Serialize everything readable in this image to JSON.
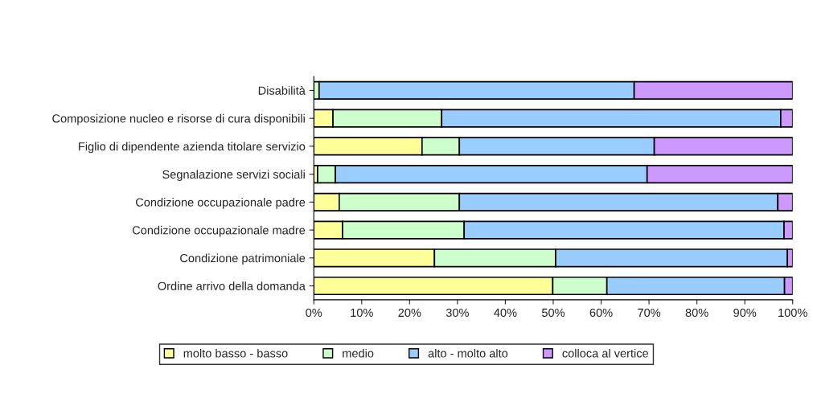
{
  "chart_data": {
    "type": "bar",
    "orientation": "horizontal",
    "stacked": true,
    "categories": [
      "Disabilità",
      "Composizione nucleo e risorse di cura disponibili",
      "Figlio di dipendente azienda titolare servizio",
      "Segnalazione servizi sociali",
      "Condizione occupazionale padre",
      "Condizione occupazionale madre",
      "Condizione patrimoniale",
      "Ordine arrivo della domanda"
    ],
    "series": [
      {
        "name": "molto basso - basso",
        "color": "#ffff99",
        "values": [
          0,
          4,
          22.6,
          0.8,
          5.3,
          6,
          25.2,
          49.9
        ]
      },
      {
        "name": "medio",
        "color": "#ccffcc",
        "values": [
          1.1,
          22.7,
          7.8,
          3.7,
          25.1,
          25.4,
          25.3,
          11.3
        ]
      },
      {
        "name": "alto - molto alto",
        "color": "#99ccff",
        "values": [
          65.8,
          70.8,
          40.7,
          65.1,
          66.5,
          66.8,
          48.4,
          37.1
        ]
      },
      {
        "name": "colloca al vertice",
        "color": "#cc99ff",
        "values": [
          33.1,
          2.5,
          28.9,
          30.4,
          3.1,
          1.8,
          1.1,
          1.7
        ]
      }
    ],
    "xlim": [
      0,
      100
    ],
    "xticks": [
      {
        "value": 0,
        "label": "0%"
      },
      {
        "value": 10,
        "label": "10%"
      },
      {
        "value": 20,
        "label": "20%"
      },
      {
        "value": 30,
        "label": "30%"
      },
      {
        "value": 40,
        "label": "40%"
      },
      {
        "value": 50,
        "label": "50%"
      },
      {
        "value": 60,
        "label": "60%"
      },
      {
        "value": 70,
        "label": "70%"
      },
      {
        "value": 80,
        "label": "80%"
      },
      {
        "value": 90,
        "label": "90%"
      },
      {
        "value": 100,
        "label": "100%"
      }
    ],
    "grid": false,
    "legend": "bottom"
  }
}
